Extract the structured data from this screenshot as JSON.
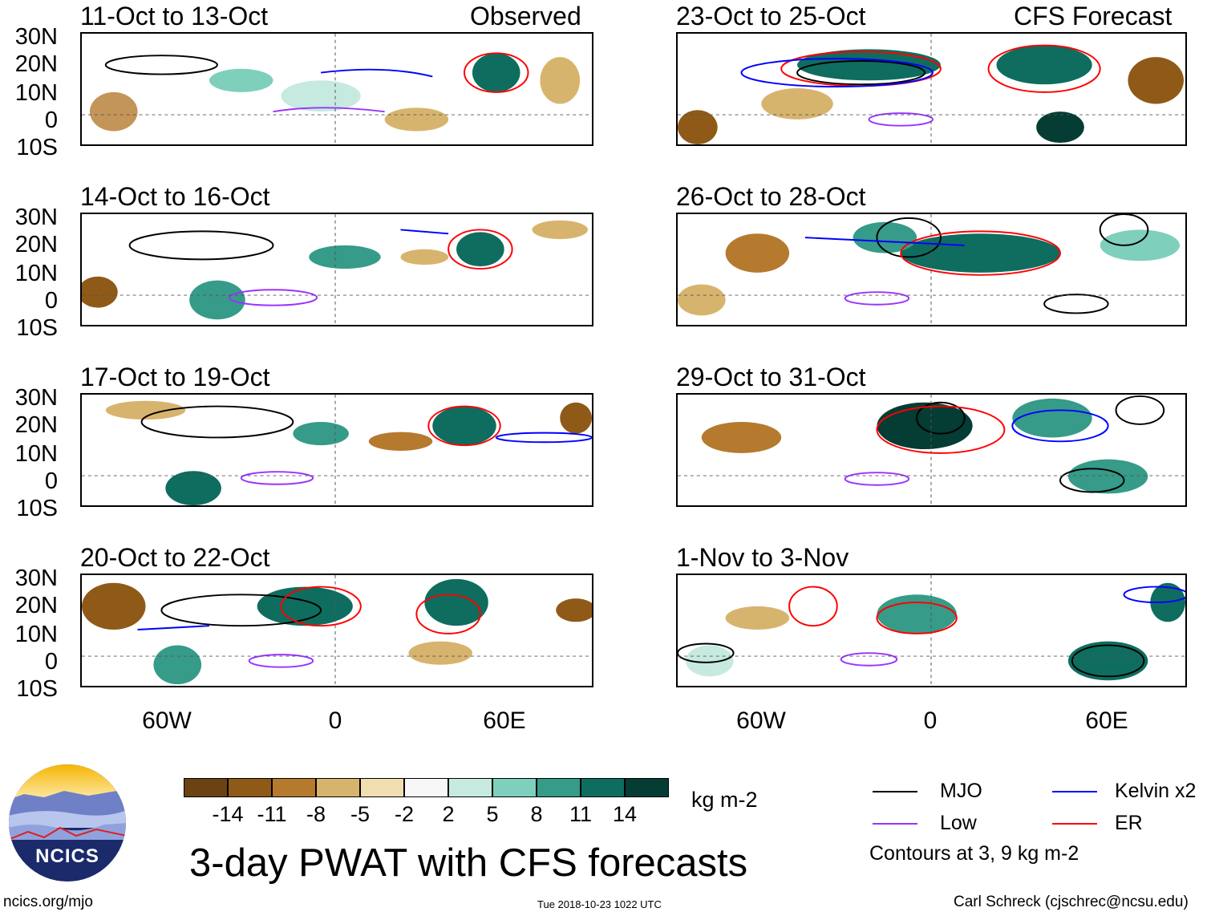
{
  "panels_left": [
    {
      "title": "11-Oct to 13-Oct",
      "tag": "Observed"
    },
    {
      "title": "14-Oct to 16-Oct",
      "tag": ""
    },
    {
      "title": "17-Oct to 19-Oct",
      "tag": ""
    },
    {
      "title": "20-Oct to 22-Oct",
      "tag": ""
    }
  ],
  "panels_right": [
    {
      "title": "23-Oct to 25-Oct",
      "tag": "CFS Forecast"
    },
    {
      "title": "26-Oct to 28-Oct",
      "tag": ""
    },
    {
      "title": "29-Oct to 31-Oct",
      "tag": ""
    },
    {
      "title": "1-Nov to 3-Nov",
      "tag": ""
    }
  ],
  "lat_labels": [
    "30N",
    "20N",
    "10N",
    "0",
    "10S"
  ],
  "lon_labels": [
    "60W",
    "0",
    "60E"
  ],
  "colorbar": {
    "colors": [
      "#6b4312",
      "#8f5a18",
      "#b57a2e",
      "#d7b46e",
      "#f0ddb0",
      "#f7f7f7",
      "#c7eae0",
      "#7fcfbd",
      "#369b88",
      "#0e6d5f",
      "#053c33"
    ],
    "labels": [
      "-14",
      "-11",
      "-8",
      "-5",
      "-2",
      "2",
      "5",
      "8",
      "11",
      "14"
    ],
    "units": "kg m-2"
  },
  "legend": {
    "mjo": {
      "label": "MJO",
      "color": "#000000"
    },
    "kelvin": {
      "label": "Kelvin x2",
      "color": "#0000ff"
    },
    "low": {
      "label": "Low",
      "color": "#9933ff"
    },
    "er": {
      "label": "ER",
      "color": "#ff0000"
    },
    "note": "Contours at 3, 9 kg m-2"
  },
  "logo": {
    "text": "NCICS"
  },
  "main_title": "3-day PWAT with CFS forecasts",
  "footer": {
    "url": "ncics.org/mjo",
    "timestamp": "Tue 2018-10-23 1022 UTC",
    "credit": "Carl Schreck (cjschrec@ncsu.edu)"
  }
}
